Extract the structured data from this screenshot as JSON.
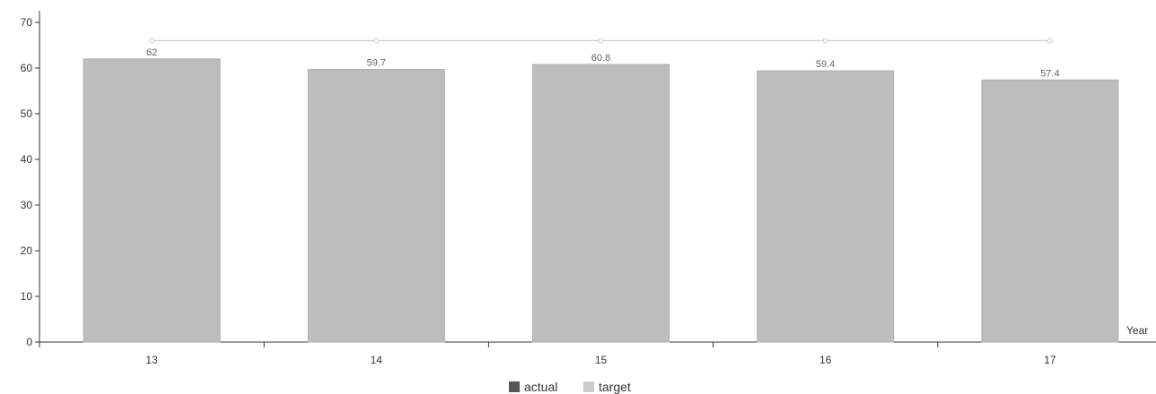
{
  "chart_data": {
    "type": "bar",
    "title": "",
    "xlabel": "Year",
    "ylabel": "",
    "ylim": [
      0,
      70
    ],
    "yticks": [
      0,
      10,
      20,
      30,
      40,
      50,
      60,
      70
    ],
    "categories": [
      "13",
      "14",
      "15",
      "16",
      "17"
    ],
    "series": [
      {
        "name": "actual",
        "type": "bar",
        "values": [
          62,
          59.7,
          60.8,
          59.4,
          57.4
        ],
        "labels": [
          "62",
          "59.7",
          "60.8",
          "59.4",
          "57.4"
        ]
      },
      {
        "name": "target",
        "type": "line",
        "values": [
          66,
          66,
          66,
          66,
          66
        ]
      }
    ],
    "grid": false,
    "legend": "bottom-center",
    "colors": {
      "actual": "#bdbdbd",
      "actual_legend": "#555555",
      "target": "#cccccc",
      "axis": "#333333"
    }
  }
}
